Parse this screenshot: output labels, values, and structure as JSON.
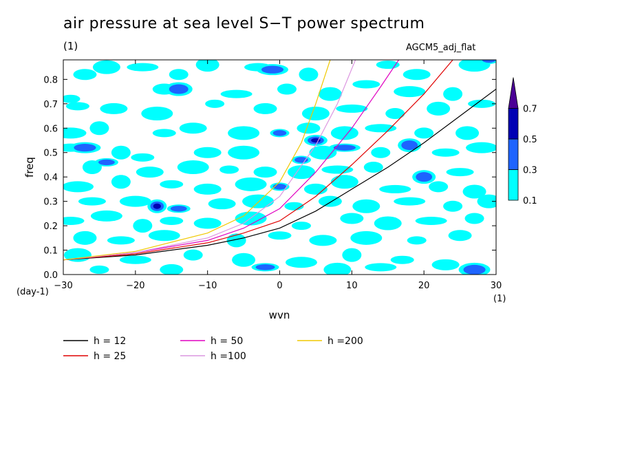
{
  "title": "air pressure at sea level S−T power spectrum",
  "subtitle": "(1)",
  "model_label": "AGCM5_adj_flat",
  "chart_data": {
    "type": "heatmap",
    "xlabel": "wvn",
    "ylabel": "freq",
    "x_unit": "(1)",
    "y_unit": "(day-1)",
    "xlim": [
      -30,
      30
    ],
    "ylim": [
      0,
      0.88
    ],
    "x_ticks": [
      -30,
      -20,
      -10,
      0,
      10,
      20,
      30
    ],
    "x_tick_labels": [
      "−30",
      "−20",
      "−10",
      "0",
      "10",
      "20",
      "30"
    ],
    "y_ticks": [
      0,
      0.1,
      0.2,
      0.3,
      0.4,
      0.5,
      0.6,
      0.7,
      0.8
    ],
    "y_tick_labels": [
      "0.0",
      "0.1",
      "0.2",
      "0.3",
      "0.4",
      "0.5",
      "0.6",
      "0.7",
      "0.8"
    ],
    "colorbar": {
      "levels": [
        0.1,
        0.3,
        0.5,
        0.7
      ],
      "level_labels": [
        "0.1",
        "0.3",
        "0.5",
        "0.7"
      ],
      "colors": [
        "#00ffff",
        "#1e64ff",
        "#0000b4",
        "#4b0096"
      ]
    },
    "dispersion_curves": [
      {
        "name": "h = 12",
        "color": "#000000",
        "points": [
          [
            -30,
            0.06
          ],
          [
            -20,
            0.08
          ],
          [
            -10,
            0.12
          ],
          [
            -5,
            0.15
          ],
          [
            0,
            0.19
          ],
          [
            5,
            0.26
          ],
          [
            10,
            0.35
          ],
          [
            15,
            0.44
          ],
          [
            20,
            0.54
          ],
          [
            25,
            0.65
          ],
          [
            30,
            0.76
          ]
        ]
      },
      {
        "name": "h = 25",
        "color": "#e00000",
        "points": [
          [
            -30,
            0.06
          ],
          [
            -20,
            0.085
          ],
          [
            -10,
            0.13
          ],
          [
            -5,
            0.17
          ],
          [
            0,
            0.22
          ],
          [
            5,
            0.32
          ],
          [
            10,
            0.45
          ],
          [
            15,
            0.59
          ],
          [
            20,
            0.74
          ],
          [
            24,
            0.88
          ]
        ]
      },
      {
        "name": "h = 50",
        "color": "#e000c0",
        "points": [
          [
            -30,
            0.06
          ],
          [
            -20,
            0.09
          ],
          [
            -10,
            0.14
          ],
          [
            -5,
            0.19
          ],
          [
            0,
            0.27
          ],
          [
            5,
            0.42
          ],
          [
            10,
            0.6
          ],
          [
            14,
            0.77
          ],
          [
            16.5,
            0.88
          ]
        ]
      },
      {
        "name": "h =100",
        "color": "#dc96e0",
        "points": [
          [
            -30,
            0.06
          ],
          [
            -20,
            0.09
          ],
          [
            -10,
            0.15
          ],
          [
            -5,
            0.21
          ],
          [
            0,
            0.32
          ],
          [
            5,
            0.53
          ],
          [
            8,
            0.7
          ],
          [
            10.5,
            0.88
          ]
        ]
      },
      {
        "name": "h =200",
        "color": "#f0c800",
        "points": [
          [
            -30,
            0.06
          ],
          [
            -20,
            0.095
          ],
          [
            -10,
            0.17
          ],
          [
            -5,
            0.24
          ],
          [
            0,
            0.38
          ],
          [
            3,
            0.54
          ],
          [
            5,
            0.7
          ],
          [
            7,
            0.88
          ]
        ]
      }
    ],
    "blobs": [
      {
        "x": -29,
        "y": 0.72,
        "level": 0
      },
      {
        "x": -27,
        "y": 0.82,
        "level": 0
      },
      {
        "x": -24,
        "y": 0.85,
        "level": 0
      },
      {
        "x": -19,
        "y": 0.85,
        "level": 0
      },
      {
        "x": -14,
        "y": 0.82,
        "level": 0
      },
      {
        "x": -10,
        "y": 0.86,
        "level": 0
      },
      {
        "x": -3,
        "y": 0.85,
        "level": 0
      },
      {
        "x": -1,
        "y": 0.84,
        "level": 1
      },
      {
        "x": 4,
        "y": 0.82,
        "level": 0
      },
      {
        "x": 15,
        "y": 0.86,
        "level": 0
      },
      {
        "x": 19,
        "y": 0.82,
        "level": 0
      },
      {
        "x": 27,
        "y": 0.86,
        "level": 0
      },
      {
        "x": 29,
        "y": 0.88,
        "level": 1
      },
      {
        "x": -16,
        "y": 0.76,
        "level": 0
      },
      {
        "x": -14,
        "y": 0.76,
        "level": 1
      },
      {
        "x": -6,
        "y": 0.74,
        "level": 0
      },
      {
        "x": 1,
        "y": 0.76,
        "level": 0
      },
      {
        "x": 7,
        "y": 0.74,
        "level": 0
      },
      {
        "x": 12,
        "y": 0.78,
        "level": 0
      },
      {
        "x": 18,
        "y": 0.75,
        "level": 0
      },
      {
        "x": 24,
        "y": 0.74,
        "level": 0
      },
      {
        "x": -28,
        "y": 0.69,
        "level": 0
      },
      {
        "x": -23,
        "y": 0.68,
        "level": 0
      },
      {
        "x": -17,
        "y": 0.66,
        "level": 0
      },
      {
        "x": -9,
        "y": 0.7,
        "level": 0
      },
      {
        "x": -2,
        "y": 0.68,
        "level": 0
      },
      {
        "x": 5,
        "y": 0.66,
        "level": 0
      },
      {
        "x": 10,
        "y": 0.68,
        "level": 0
      },
      {
        "x": 16,
        "y": 0.66,
        "level": 0
      },
      {
        "x": 22,
        "y": 0.68,
        "level": 0
      },
      {
        "x": 28,
        "y": 0.7,
        "level": 0
      },
      {
        "x": -29,
        "y": 0.58,
        "level": 0
      },
      {
        "x": -25,
        "y": 0.6,
        "level": 0
      },
      {
        "x": -16,
        "y": 0.58,
        "level": 0
      },
      {
        "x": -12,
        "y": 0.6,
        "level": 0
      },
      {
        "x": -5,
        "y": 0.58,
        "level": 0
      },
      {
        "x": 0,
        "y": 0.58,
        "level": 1
      },
      {
        "x": 4,
        "y": 0.6,
        "level": 0
      },
      {
        "x": 9,
        "y": 0.58,
        "level": 0
      },
      {
        "x": 14,
        "y": 0.6,
        "level": 0
      },
      {
        "x": 20,
        "y": 0.58,
        "level": 0
      },
      {
        "x": 26,
        "y": 0.58,
        "level": 0
      },
      {
        "x": -29,
        "y": 0.52,
        "level": 0
      },
      {
        "x": -27,
        "y": 0.52,
        "level": 1
      },
      {
        "x": -22,
        "y": 0.5,
        "level": 0
      },
      {
        "x": -19,
        "y": 0.48,
        "level": 0
      },
      {
        "x": -10,
        "y": 0.5,
        "level": 0
      },
      {
        "x": -5,
        "y": 0.5,
        "level": 0
      },
      {
        "x": 3,
        "y": 0.47,
        "level": 1
      },
      {
        "x": 5,
        "y": 0.55,
        "level": 2
      },
      {
        "x": 6,
        "y": 0.5,
        "level": 0
      },
      {
        "x": 9,
        "y": 0.52,
        "level": 1
      },
      {
        "x": 14,
        "y": 0.5,
        "level": 0
      },
      {
        "x": 18,
        "y": 0.53,
        "level": 1
      },
      {
        "x": 23,
        "y": 0.5,
        "level": 0
      },
      {
        "x": 28,
        "y": 0.52,
        "level": 0
      },
      {
        "x": -26,
        "y": 0.44,
        "level": 0
      },
      {
        "x": -24,
        "y": 0.46,
        "level": 1
      },
      {
        "x": -18,
        "y": 0.42,
        "level": 0
      },
      {
        "x": -12,
        "y": 0.44,
        "level": 0
      },
      {
        "x": -7,
        "y": 0.43,
        "level": 0
      },
      {
        "x": -2,
        "y": 0.42,
        "level": 0
      },
      {
        "x": 3,
        "y": 0.42,
        "level": 0
      },
      {
        "x": 8,
        "y": 0.43,
        "level": 0
      },
      {
        "x": 13,
        "y": 0.44,
        "level": 0
      },
      {
        "x": 20,
        "y": 0.4,
        "level": 1
      },
      {
        "x": 25,
        "y": 0.42,
        "level": 0
      },
      {
        "x": -28,
        "y": 0.36,
        "level": 0
      },
      {
        "x": -22,
        "y": 0.38,
        "level": 0
      },
      {
        "x": -15,
        "y": 0.37,
        "level": 0
      },
      {
        "x": -10,
        "y": 0.35,
        "level": 0
      },
      {
        "x": -4,
        "y": 0.37,
        "level": 0
      },
      {
        "x": 0,
        "y": 0.36,
        "level": 1
      },
      {
        "x": 5,
        "y": 0.35,
        "level": 0
      },
      {
        "x": 9,
        "y": 0.38,
        "level": 0
      },
      {
        "x": 16,
        "y": 0.35,
        "level": 0
      },
      {
        "x": 22,
        "y": 0.36,
        "level": 0
      },
      {
        "x": 27,
        "y": 0.34,
        "level": 0
      },
      {
        "x": -26,
        "y": 0.3,
        "level": 0
      },
      {
        "x": -20,
        "y": 0.3,
        "level": 0
      },
      {
        "x": -17,
        "y": 0.28,
        "level": 2
      },
      {
        "x": -14,
        "y": 0.27,
        "level": 1
      },
      {
        "x": -8,
        "y": 0.29,
        "level": 0
      },
      {
        "x": -3,
        "y": 0.3,
        "level": 0
      },
      {
        "x": 2,
        "y": 0.28,
        "level": 0
      },
      {
        "x": 7,
        "y": 0.3,
        "level": 0
      },
      {
        "x": 12,
        "y": 0.28,
        "level": 0
      },
      {
        "x": 18,
        "y": 0.3,
        "level": 0
      },
      {
        "x": 24,
        "y": 0.28,
        "level": 0
      },
      {
        "x": 29,
        "y": 0.3,
        "level": 0
      },
      {
        "x": -29,
        "y": 0.22,
        "level": 0
      },
      {
        "x": -24,
        "y": 0.24,
        "level": 0
      },
      {
        "x": -19,
        "y": 0.2,
        "level": 0
      },
      {
        "x": -15,
        "y": 0.22,
        "level": 0
      },
      {
        "x": -10,
        "y": 0.21,
        "level": 0
      },
      {
        "x": -4,
        "y": 0.23,
        "level": 0
      },
      {
        "x": 3,
        "y": 0.2,
        "level": 0
      },
      {
        "x": 10,
        "y": 0.23,
        "level": 0
      },
      {
        "x": 15,
        "y": 0.21,
        "level": 0
      },
      {
        "x": 21,
        "y": 0.22,
        "level": 0
      },
      {
        "x": 27,
        "y": 0.23,
        "level": 0
      },
      {
        "x": -27,
        "y": 0.15,
        "level": 0
      },
      {
        "x": -22,
        "y": 0.14,
        "level": 0
      },
      {
        "x": -16,
        "y": 0.16,
        "level": 0
      },
      {
        "x": -6,
        "y": 0.14,
        "level": 0
      },
      {
        "x": 0,
        "y": 0.16,
        "level": 0
      },
      {
        "x": 6,
        "y": 0.14,
        "level": 0
      },
      {
        "x": 12,
        "y": 0.15,
        "level": 0
      },
      {
        "x": 19,
        "y": 0.14,
        "level": 0
      },
      {
        "x": 25,
        "y": 0.16,
        "level": 0
      },
      {
        "x": -28,
        "y": 0.08,
        "level": 0
      },
      {
        "x": -20,
        "y": 0.06,
        "level": 0
      },
      {
        "x": -12,
        "y": 0.08,
        "level": 0
      },
      {
        "x": -5,
        "y": 0.06,
        "level": 0
      },
      {
        "x": -2,
        "y": 0.03,
        "level": 1
      },
      {
        "x": 3,
        "y": 0.05,
        "level": 0
      },
      {
        "x": 10,
        "y": 0.08,
        "level": 0
      },
      {
        "x": 17,
        "y": 0.06,
        "level": 0
      },
      {
        "x": 23,
        "y": 0.04,
        "level": 0
      },
      {
        "x": 27,
        "y": 0.02,
        "level": 1
      },
      {
        "x": -25,
        "y": 0.02,
        "level": 0
      },
      {
        "x": -15,
        "y": 0.02,
        "level": 0
      },
      {
        "x": 8,
        "y": 0.02,
        "level": 0
      },
      {
        "x": 14,
        "y": 0.03,
        "level": 0
      }
    ]
  }
}
